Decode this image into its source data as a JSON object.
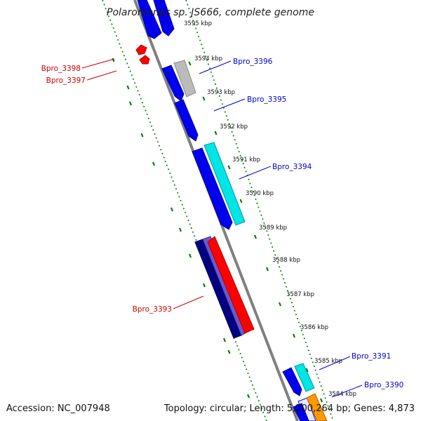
{
  "title": "Polaromonas sp. JS666, complete genome",
  "footer": {
    "accession": "Accession: NC_007948",
    "summary": "Topology: circular; Length: 5,200,264 bp; Genes: 4,873"
  },
  "ticks": [
    "3595 kbp",
    "3594 kbp",
    "3593 kbp",
    "3592 kbp",
    "3591 kbp",
    "3590 kbp",
    "3589 kbp",
    "3588 kbp",
    "3587 kbp",
    "3586 kbp",
    "3585 kbp",
    "3584 kbp"
  ],
  "labels": {
    "bpro_3398": "Bpro_3398",
    "bpro_3397": "Bpro_3397",
    "bpro_3396": "Bpro_3396",
    "bpro_3395": "Bpro_3395",
    "bpro_3394": "Bpro_3394",
    "bpro_3393": "Bpro_3393",
    "bpro_3391": "Bpro_3391",
    "bpro_3390": "Bpro_3390"
  },
  "colors": {
    "backbone": "#808080",
    "guide": "#008000",
    "forward_label": "#0000cc",
    "reverse_label": "#cc0000",
    "cds_blue": "#0000ee",
    "cds_cyan": "#00e5e5",
    "cds_red": "#ff0000",
    "cds_navy": "#000080",
    "cds_slate": "#6a5acd",
    "cds_grey": "#bbbbbb",
    "cds_orange": "#ff9900"
  }
}
